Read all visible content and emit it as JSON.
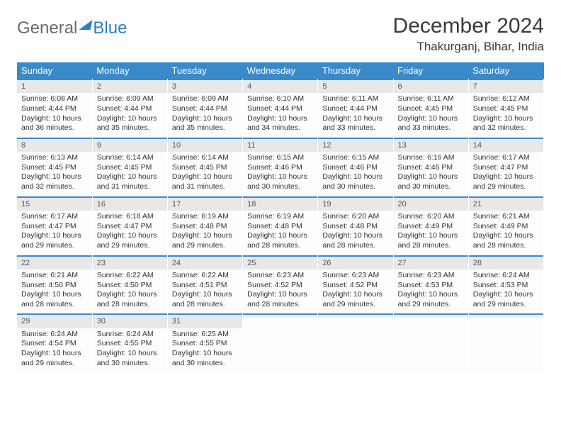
{
  "logo": {
    "text1": "General",
    "text2": "Blue"
  },
  "title": "December 2024",
  "location": "Thakurganj, Bihar, India",
  "style": {
    "header_bg": "#3a8ac9",
    "header_fg": "#ffffff",
    "daynum_bg": "#e8e8e8",
    "row_divider": "#3a8ac9",
    "body_fontsize": 10.5,
    "th_fontsize": 13,
    "title_fontsize": 30,
    "location_fontsize": 17
  },
  "weekdays": [
    "Sunday",
    "Monday",
    "Tuesday",
    "Wednesday",
    "Thursday",
    "Friday",
    "Saturday"
  ],
  "weeks": [
    [
      {
        "n": "1",
        "sr": "Sunrise: 6:08 AM",
        "ss": "Sunset: 4:44 PM",
        "dl": "Daylight: 10 hours and 36 minutes."
      },
      {
        "n": "2",
        "sr": "Sunrise: 6:09 AM",
        "ss": "Sunset: 4:44 PM",
        "dl": "Daylight: 10 hours and 35 minutes."
      },
      {
        "n": "3",
        "sr": "Sunrise: 6:09 AM",
        "ss": "Sunset: 4:44 PM",
        "dl": "Daylight: 10 hours and 35 minutes."
      },
      {
        "n": "4",
        "sr": "Sunrise: 6:10 AM",
        "ss": "Sunset: 4:44 PM",
        "dl": "Daylight: 10 hours and 34 minutes."
      },
      {
        "n": "5",
        "sr": "Sunrise: 6:11 AM",
        "ss": "Sunset: 4:44 PM",
        "dl": "Daylight: 10 hours and 33 minutes."
      },
      {
        "n": "6",
        "sr": "Sunrise: 6:11 AM",
        "ss": "Sunset: 4:45 PM",
        "dl": "Daylight: 10 hours and 33 minutes."
      },
      {
        "n": "7",
        "sr": "Sunrise: 6:12 AM",
        "ss": "Sunset: 4:45 PM",
        "dl": "Daylight: 10 hours and 32 minutes."
      }
    ],
    [
      {
        "n": "8",
        "sr": "Sunrise: 6:13 AM",
        "ss": "Sunset: 4:45 PM",
        "dl": "Daylight: 10 hours and 32 minutes."
      },
      {
        "n": "9",
        "sr": "Sunrise: 6:14 AM",
        "ss": "Sunset: 4:45 PM",
        "dl": "Daylight: 10 hours and 31 minutes."
      },
      {
        "n": "10",
        "sr": "Sunrise: 6:14 AM",
        "ss": "Sunset: 4:45 PM",
        "dl": "Daylight: 10 hours and 31 minutes."
      },
      {
        "n": "11",
        "sr": "Sunrise: 6:15 AM",
        "ss": "Sunset: 4:46 PM",
        "dl": "Daylight: 10 hours and 30 minutes."
      },
      {
        "n": "12",
        "sr": "Sunrise: 6:15 AM",
        "ss": "Sunset: 4:46 PM",
        "dl": "Daylight: 10 hours and 30 minutes."
      },
      {
        "n": "13",
        "sr": "Sunrise: 6:16 AM",
        "ss": "Sunset: 4:46 PM",
        "dl": "Daylight: 10 hours and 30 minutes."
      },
      {
        "n": "14",
        "sr": "Sunrise: 6:17 AM",
        "ss": "Sunset: 4:47 PM",
        "dl": "Daylight: 10 hours and 29 minutes."
      }
    ],
    [
      {
        "n": "15",
        "sr": "Sunrise: 6:17 AM",
        "ss": "Sunset: 4:47 PM",
        "dl": "Daylight: 10 hours and 29 minutes."
      },
      {
        "n": "16",
        "sr": "Sunrise: 6:18 AM",
        "ss": "Sunset: 4:47 PM",
        "dl": "Daylight: 10 hours and 29 minutes."
      },
      {
        "n": "17",
        "sr": "Sunrise: 6:19 AM",
        "ss": "Sunset: 4:48 PM",
        "dl": "Daylight: 10 hours and 29 minutes."
      },
      {
        "n": "18",
        "sr": "Sunrise: 6:19 AM",
        "ss": "Sunset: 4:48 PM",
        "dl": "Daylight: 10 hours and 28 minutes."
      },
      {
        "n": "19",
        "sr": "Sunrise: 6:20 AM",
        "ss": "Sunset: 4:48 PM",
        "dl": "Daylight: 10 hours and 28 minutes."
      },
      {
        "n": "20",
        "sr": "Sunrise: 6:20 AM",
        "ss": "Sunset: 4:49 PM",
        "dl": "Daylight: 10 hours and 28 minutes."
      },
      {
        "n": "21",
        "sr": "Sunrise: 6:21 AM",
        "ss": "Sunset: 4:49 PM",
        "dl": "Daylight: 10 hours and 28 minutes."
      }
    ],
    [
      {
        "n": "22",
        "sr": "Sunrise: 6:21 AM",
        "ss": "Sunset: 4:50 PM",
        "dl": "Daylight: 10 hours and 28 minutes."
      },
      {
        "n": "23",
        "sr": "Sunrise: 6:22 AM",
        "ss": "Sunset: 4:50 PM",
        "dl": "Daylight: 10 hours and 28 minutes."
      },
      {
        "n": "24",
        "sr": "Sunrise: 6:22 AM",
        "ss": "Sunset: 4:51 PM",
        "dl": "Daylight: 10 hours and 28 minutes."
      },
      {
        "n": "25",
        "sr": "Sunrise: 6:23 AM",
        "ss": "Sunset: 4:52 PM",
        "dl": "Daylight: 10 hours and 28 minutes."
      },
      {
        "n": "26",
        "sr": "Sunrise: 6:23 AM",
        "ss": "Sunset: 4:52 PM",
        "dl": "Daylight: 10 hours and 29 minutes."
      },
      {
        "n": "27",
        "sr": "Sunrise: 6:23 AM",
        "ss": "Sunset: 4:53 PM",
        "dl": "Daylight: 10 hours and 29 minutes."
      },
      {
        "n": "28",
        "sr": "Sunrise: 6:24 AM",
        "ss": "Sunset: 4:53 PM",
        "dl": "Daylight: 10 hours and 29 minutes."
      }
    ],
    [
      {
        "n": "29",
        "sr": "Sunrise: 6:24 AM",
        "ss": "Sunset: 4:54 PM",
        "dl": "Daylight: 10 hours and 29 minutes."
      },
      {
        "n": "30",
        "sr": "Sunrise: 6:24 AM",
        "ss": "Sunset: 4:55 PM",
        "dl": "Daylight: 10 hours and 30 minutes."
      },
      {
        "n": "31",
        "sr": "Sunrise: 6:25 AM",
        "ss": "Sunset: 4:55 PM",
        "dl": "Daylight: 10 hours and 30 minutes."
      },
      {
        "n": "",
        "sr": "",
        "ss": "",
        "dl": ""
      },
      {
        "n": "",
        "sr": "",
        "ss": "",
        "dl": ""
      },
      {
        "n": "",
        "sr": "",
        "ss": "",
        "dl": ""
      },
      {
        "n": "",
        "sr": "",
        "ss": "",
        "dl": ""
      }
    ]
  ]
}
